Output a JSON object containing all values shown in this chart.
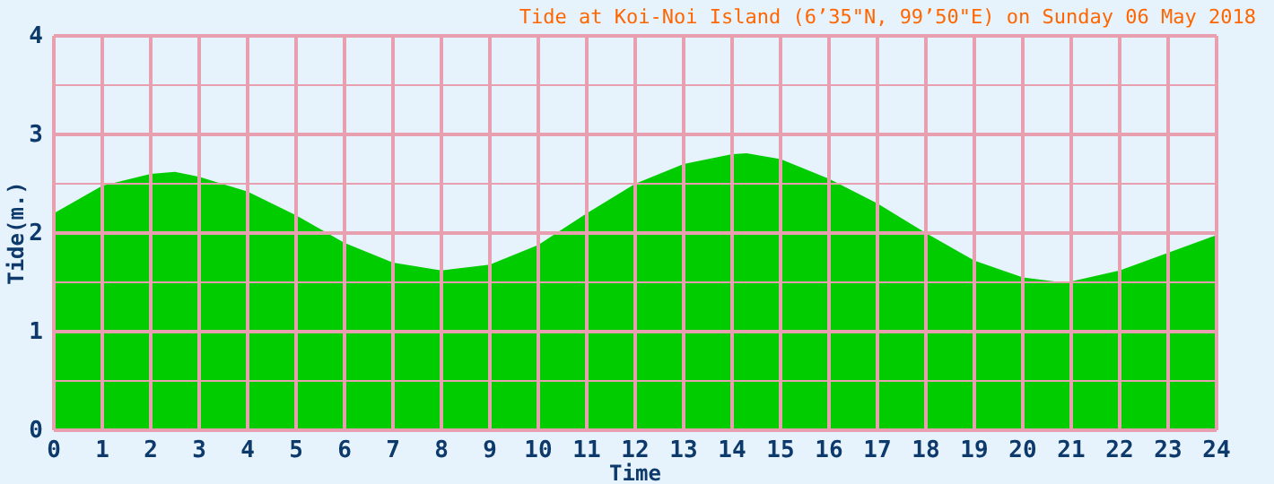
{
  "chart_data": {
    "type": "area",
    "title": "Tide at Koi-Noi Island (6’35\"N, 99’50\"E) on Sunday 06 May 2018",
    "xlabel": "Time",
    "ylabel": "Tide(m.)",
    "x": [
      0,
      1,
      2,
      2.5,
      3,
      4,
      5,
      6,
      7,
      8,
      9,
      10,
      11,
      12,
      13,
      14,
      14.3,
      15,
      16,
      17,
      18,
      19,
      20,
      20.8,
      21,
      22,
      23,
      24
    ],
    "series": [
      {
        "color": "#00cc00",
        "values": [
          2.2,
          2.48,
          2.6,
          2.62,
          2.57,
          2.42,
          2.18,
          1.9,
          1.7,
          1.62,
          1.68,
          1.88,
          2.2,
          2.5,
          2.7,
          2.8,
          2.81,
          2.75,
          2.55,
          2.3,
          2.0,
          1.72,
          1.55,
          1.5,
          1.51,
          1.62,
          1.8,
          1.98
        ]
      }
    ],
    "xlim": [
      0,
      24
    ],
    "xticks": [
      0,
      1,
      2,
      3,
      4,
      5,
      6,
      7,
      8,
      9,
      10,
      11,
      12,
      13,
      14,
      15,
      16,
      17,
      18,
      19,
      20,
      21,
      22,
      23,
      24
    ],
    "ylim": [
      0,
      4
    ],
    "yticks": [
      0,
      {
        "value": 0.5,
        "label": null
      },
      1,
      {
        "value": 1.5,
        "label": null
      },
      2,
      {
        "value": 2.5,
        "label": null
      },
      3,
      {
        "value": 3.5,
        "label": null
      },
      4
    ],
    "grid": true
  }
}
